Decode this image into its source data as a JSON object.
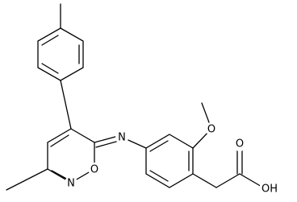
{
  "atoms": [
    "N",
    "N",
    "O",
    "O",
    "O",
    "OH"
  ]
}
